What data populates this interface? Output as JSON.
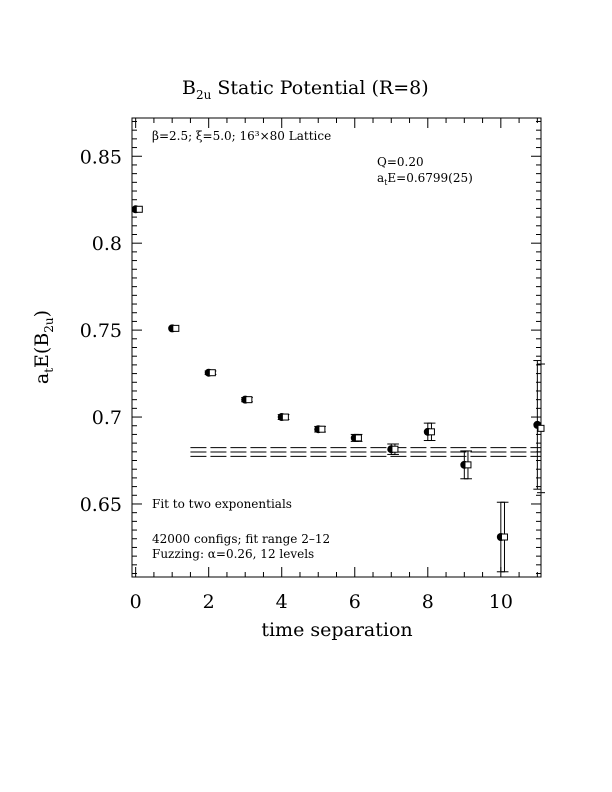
{
  "chart_data": {
    "type": "scatter",
    "title": "B",
    "title_sub": "2u",
    "title_rest": " Static Potential (R=8)",
    "xlabel": "time separation",
    "ylabel": {
      "a": "a",
      "t": "t",
      "E": "E(B",
      "sub": "2u",
      "close": ")"
    },
    "xlim": [
      -0.1,
      11.1
    ],
    "ylim": [
      0.608,
      0.872
    ],
    "xticks": [
      0,
      2,
      4,
      6,
      8,
      10
    ],
    "xtick_labels": [
      "0",
      "2",
      "4",
      "6",
      "8",
      "10"
    ],
    "yticks": [
      0.65,
      0.7,
      0.75,
      0.8,
      0.85
    ],
    "ytick_labels": [
      "0.65",
      "0.7",
      "0.75",
      "0.8",
      "0.85"
    ],
    "series": [
      {
        "marker": "filled-circle",
        "x": [
          0,
          1,
          2,
          3,
          4,
          5,
          6,
          7,
          8,
          9,
          10,
          11
        ],
        "y": [
          0.8195,
          0.751,
          0.7255,
          0.71,
          0.7,
          0.693,
          0.688,
          0.6815,
          0.6915,
          0.6725,
          0.631,
          0.6955
        ],
        "err": [
          0.0006,
          0.0008,
          0.001,
          0.0012,
          0.0014,
          0.0016,
          0.002,
          0.003,
          0.005,
          0.008,
          0.02,
          0.037
        ]
      },
      {
        "marker": "open-square",
        "x": [
          0.1,
          1.1,
          2.1,
          3.1,
          4.1,
          5.1,
          6.1,
          7.1,
          8.1,
          9.1,
          10.1,
          11.1
        ],
        "y": [
          0.8195,
          0.751,
          0.7255,
          0.71,
          0.7,
          0.693,
          0.688,
          0.6815,
          0.6915,
          0.6725,
          0.631,
          0.6935
        ],
        "err": [
          0.0006,
          0.0008,
          0.001,
          0.0012,
          0.0014,
          0.0016,
          0.002,
          0.003,
          0.005,
          0.008,
          0.02,
          0.037
        ]
      }
    ],
    "fit": {
      "x_start": 1.5,
      "x_end": 11.1,
      "center": 0.6799,
      "error": 0.0025
    },
    "annotations": {
      "lattice": "β=2.5; ξ=5.0; 16³×80 Lattice",
      "q": "Q=0.20",
      "energy_a": "a",
      "energy_t": "t",
      "energy_rest": "E=0.6799(25)",
      "fit_desc": "Fit to two exponentials",
      "configs": "42000 configs; fit range 2–12",
      "fuzzing": "Fuzzing: α=0.26, 12 levels"
    },
    "grid": false
  }
}
